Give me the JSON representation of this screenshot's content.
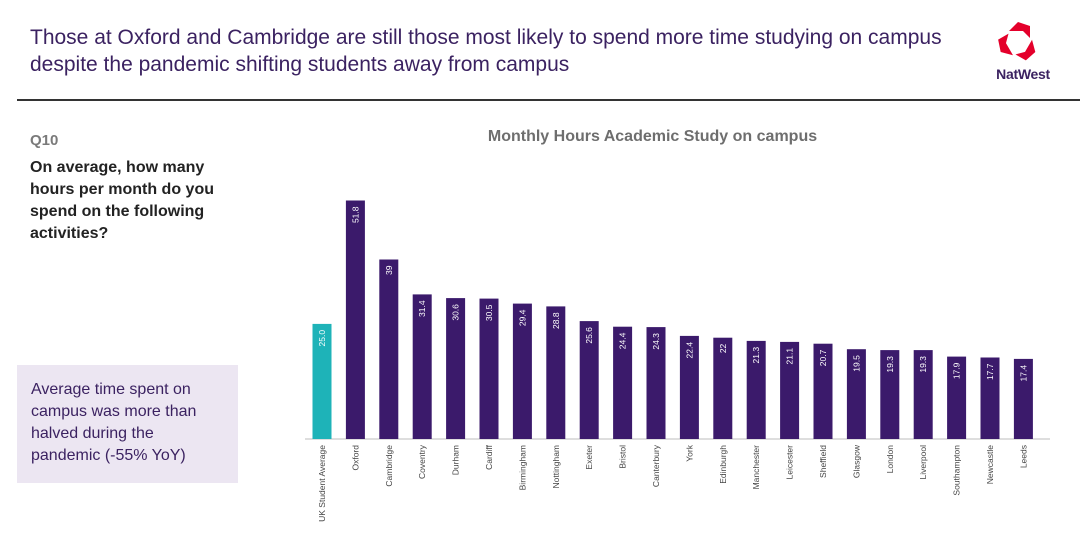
{
  "header": {
    "title": "Those at Oxford and Cambridge are still those most likely to spend more time studying on campus despite the pandemic shifting students away from campus",
    "brand": "NatWest",
    "brand_color": "#e4002b"
  },
  "sidebar": {
    "question_number": "Q10",
    "question_text": "On average, how many hours per month do you spend on the following activities?",
    "callout_text": "Average time spent on campus was more than halved during the pandemic (-55% YoY)"
  },
  "chart_data": {
    "type": "bar",
    "title": "Monthly Hours Academic Study on campus",
    "xlabel": "",
    "ylabel": "",
    "ylim": [
      0,
      53
    ],
    "grid": false,
    "legend": "none",
    "categories": [
      "UK Student Average",
      "Oxford",
      "Cambridge",
      "Coventry",
      "Durham",
      "Cardiff",
      "Birmingham",
      "Nottingham",
      "Exeter",
      "Bristol",
      "Canterbury",
      "York",
      "Edinburgh",
      "Manchester",
      "Leicester",
      "Sheffield",
      "Glasgow",
      "London",
      "Liverpool",
      "Southampton",
      "Newcastle",
      "Leeds"
    ],
    "values": [
      25.0,
      51.8,
      39,
      31.4,
      30.6,
      30.5,
      29.4,
      28.8,
      25.6,
      24.4,
      24.3,
      22.4,
      22,
      21.3,
      21.1,
      20.7,
      19.5,
      19.3,
      19.3,
      17.9,
      17.7,
      17.4
    ],
    "value_labels": [
      "25.0",
      "51.8",
      "39",
      "31.4",
      "30.6",
      "30.5",
      "29.4",
      "28.8",
      "25.6",
      "24.4",
      "24.3",
      "22.4",
      "22",
      "21.3",
      "21.1",
      "20.7",
      "19.5",
      "19.3",
      "19.3",
      "17.9",
      "17.7",
      "17.4"
    ],
    "colors": {
      "average": "#1eb3b8",
      "university": "#3b1a6b"
    }
  }
}
